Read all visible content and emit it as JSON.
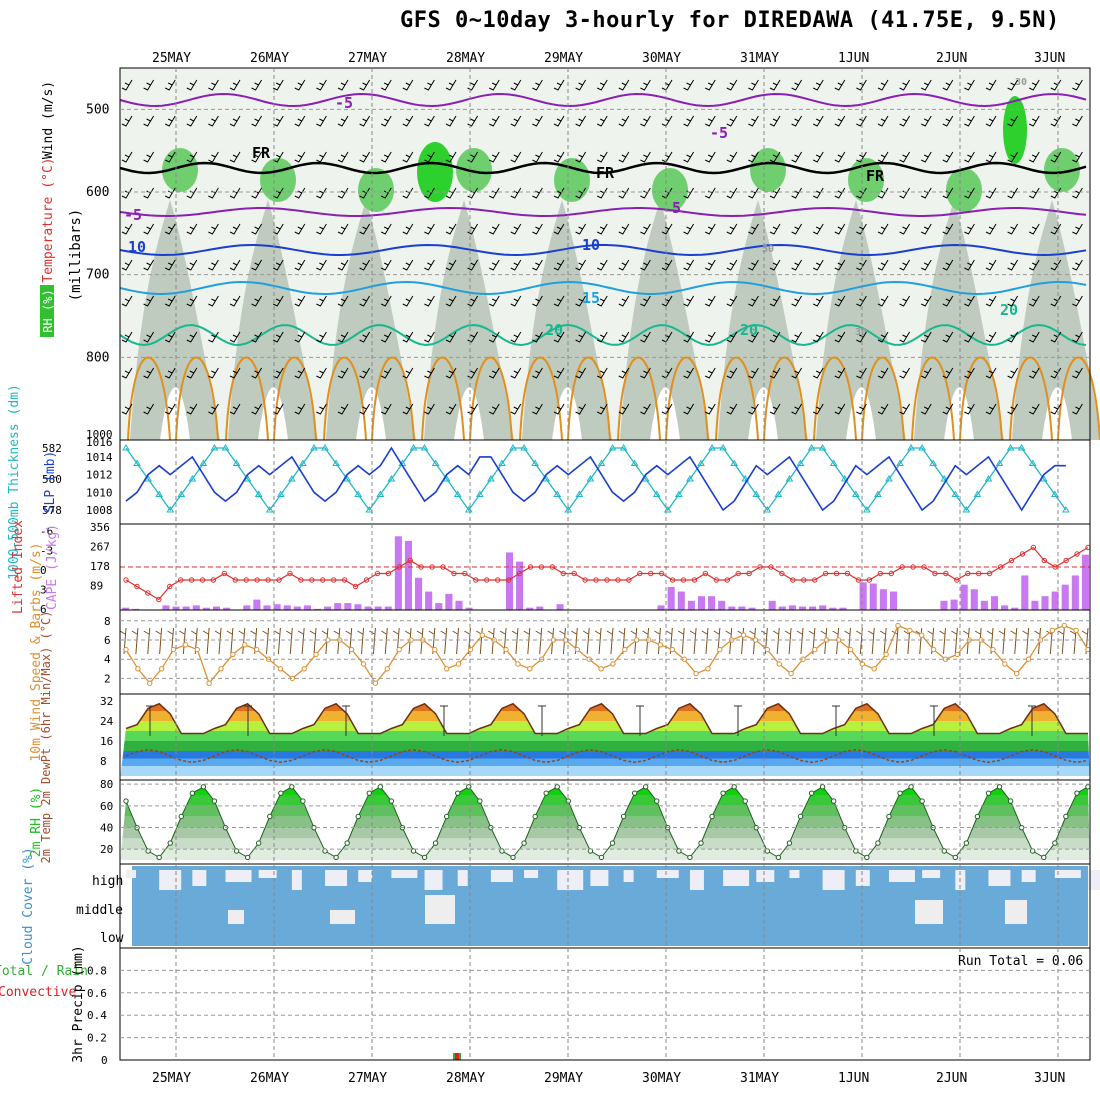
{
  "title": "GFS 0~10day 3-hourly for DIREDAWA (41.75E, 9.5N)",
  "colors": {
    "purple": "#8a1fb4",
    "black": "#000000",
    "blue_dark": "#1a3fd0",
    "blue_mid": "#1e6fd8",
    "blue_light": "#1ea0e0",
    "teal": "#17b890",
    "orange": "#e09020",
    "cyan": "#20b8c8",
    "cape": "#c878f0",
    "lifted": "#e03030",
    "wind": "#e09030",
    "rh_green": "#20c020",
    "cloud": "#6aaad8",
    "precip_green": "#30b030",
    "precip_red": "#e02020"
  },
  "chart_data": [
    {
      "type": "contour",
      "id": "upper",
      "xlabels": [
        "25MAY",
        "26MAY",
        "27MAY",
        "28MAY",
        "29MAY",
        "30MAY",
        "31MAY",
        "1JUN",
        "2JUN",
        "3JUN"
      ],
      "ylabel_parts": [
        "RH (%)",
        "Temperature (°C)",
        "Wind (m/s)",
        "(millibars)"
      ],
      "yticks": [
        500,
        600,
        700,
        800
      ],
      "ylim": [
        900,
        450
      ],
      "contour_labels": [
        {
          "text": "-5",
          "color": "purple"
        },
        {
          "text": "-5",
          "color": "purple"
        },
        {
          "text": "-5",
          "color": "purple"
        },
        {
          "text": "5",
          "color": "purple"
        },
        {
          "text": "FR",
          "color": "black"
        },
        {
          "text": "FR",
          "color": "black"
        },
        {
          "text": "FR",
          "color": "black"
        },
        {
          "text": "10",
          "color": "blue_dark"
        },
        {
          "text": "10",
          "color": "blue_dark"
        },
        {
          "text": "15",
          "color": "blue_light"
        },
        {
          "text": "20",
          "color": "teal"
        },
        {
          "text": "20",
          "color": "teal"
        },
        {
          "text": "20",
          "color": "teal"
        },
        {
          "text": "30",
          "color": "gray"
        },
        {
          "text": "30",
          "color": "gray"
        },
        {
          "text": "50",
          "color": "gray"
        }
      ]
    },
    {
      "type": "line",
      "id": "slp",
      "ylabel_left": "1000-500mb Thickness (dm)",
      "ylabel_right": "SLP (mb)",
      "yticks_left": [
        578,
        580,
        582
      ],
      "yticks_right": [
        1008,
        1010,
        1012,
        1014
      ],
      "top_labels": [
        "1016",
        "1000"
      ],
      "series": [
        {
          "name": "SLP",
          "color": "blue_dark",
          "values": [
            1009,
            1010,
            1012,
            1013,
            1012,
            1013,
            1014,
            1012,
            1010,
            1009,
            1010,
            1012,
            1013,
            1012,
            1013,
            1014,
            1012,
            1010,
            1009,
            1010,
            1012,
            1013,
            1012,
            1013,
            1015,
            1013,
            1011,
            1009,
            1010,
            1012,
            1013,
            1012,
            1014,
            1014,
            1012,
            1010,
            1009,
            1010,
            1012,
            1013,
            1012,
            1013,
            1014,
            1012,
            1010,
            1009,
            1010,
            1012,
            1013,
            1012,
            1013,
            1014,
            1012,
            1010,
            1008,
            1009,
            1011,
            1013,
            1012,
            1013,
            1014,
            1012,
            1010,
            1008,
            1009,
            1011,
            1013,
            1012,
            1013,
            1014,
            1012,
            1010,
            1008,
            1009,
            1011,
            1013,
            1012,
            1013,
            1014,
            1012,
            1010,
            1008,
            1010,
            1012,
            1013,
            1013
          ]
        },
        {
          "name": "Thickness",
          "color": "cyan",
          "values": [
            582,
            581,
            580,
            579,
            578,
            579,
            580,
            581,
            582,
            582,
            581,
            580,
            579,
            578,
            579,
            580,
            581,
            582,
            582,
            581,
            580,
            579,
            578,
            579,
            580,
            581,
            582,
            582,
            581,
            580,
            579,
            578,
            579,
            580,
            581,
            582,
            582,
            581,
            580,
            579,
            578,
            579,
            580,
            581,
            582,
            582,
            581,
            580,
            579,
            578,
            579,
            580,
            581,
            582,
            582,
            581,
            580,
            579,
            578,
            579,
            580,
            581,
            582,
            582,
            581,
            580,
            579,
            578,
            579,
            580,
            581,
            582,
            582,
            581,
            580,
            579,
            578,
            579,
            580,
            581,
            582,
            582,
            581,
            580,
            579,
            578
          ]
        }
      ]
    },
    {
      "type": "bar+line",
      "id": "cape",
      "ylabel_left": "Lifted Index",
      "ylabel_right": "CAPE (J/kg)",
      "yticks_left": [
        "-6",
        "-3",
        "0",
        "3",
        "6"
      ],
      "yticks_right": [
        "356",
        "267",
        "178",
        "89"
      ],
      "cape_values": [
        10,
        5,
        0,
        0,
        20,
        15,
        15,
        20,
        10,
        15,
        10,
        0,
        20,
        45,
        20,
        25,
        20,
        15,
        20,
        5,
        15,
        30,
        30,
        25,
        15,
        15,
        15,
        320,
        300,
        140,
        80,
        30,
        70,
        40,
        10,
        0,
        0,
        0,
        250,
        210,
        10,
        15,
        0,
        25,
        0,
        0,
        0,
        0,
        0,
        0,
        0,
        0,
        0,
        20,
        100,
        80,
        40,
        60,
        60,
        40,
        15,
        15,
        10,
        0,
        40,
        15,
        20,
        15,
        15,
        20,
        10,
        10,
        0,
        120,
        115,
        90,
        80,
        0,
        0,
        0,
        0,
        40,
        45,
        110,
        90,
        40,
        60,
        20,
        10,
        150,
        40,
        60,
        80,
        110,
        150,
        240
      ],
      "lifted_values": [
        2,
        3,
        4,
        5,
        3,
        2,
        2,
        2,
        2,
        1,
        2,
        2,
        2,
        2,
        2,
        1,
        2,
        2,
        2,
        2,
        2,
        3,
        2,
        1,
        1,
        0,
        -1,
        0,
        0,
        0,
        1,
        1,
        2,
        2,
        2,
        2,
        1,
        0,
        0,
        0,
        1,
        1,
        2,
        2,
        2,
        2,
        2,
        1,
        1,
        1,
        2,
        2,
        2,
        1,
        2,
        2,
        1,
        1,
        0,
        0,
        1,
        2,
        2,
        2,
        1,
        1,
        1,
        2,
        2,
        1,
        1,
        0,
        0,
        0,
        1,
        1,
        2,
        1,
        1,
        1,
        0,
        -1,
        -2,
        -3,
        -1,
        0,
        -1,
        -2,
        -3
      ]
    },
    {
      "type": "line",
      "id": "wind10m",
      "ylabel": "10m Wind Speed & Barbs (m/s)",
      "yticks": [
        "2",
        "4",
        "6",
        "8"
      ],
      "values": [
        5,
        3,
        1.5,
        3,
        5,
        5.5,
        5,
        1.5,
        3,
        4.5,
        5.5,
        5,
        4,
        3,
        2,
        3,
        4.5,
        6,
        6,
        5,
        3.5,
        1.5,
        3,
        5,
        6,
        6,
        5,
        3,
        3.5,
        5,
        6.5,
        6,
        5,
        3.5,
        3,
        4,
        6,
        6,
        5,
        4,
        3,
        3.5,
        5,
        6,
        6,
        5.5,
        5,
        4,
        2.5,
        3,
        5,
        6,
        6.5,
        6,
        5,
        3.5,
        2.5,
        4,
        5,
        6,
        6,
        5,
        3.5,
        3,
        4.5,
        7.5,
        7,
        6.5,
        5,
        4,
        4.5,
        6,
        6,
        5,
        3.5,
        2.5,
        4,
        6,
        7,
        7.5,
        7,
        5
      ]
    },
    {
      "type": "line",
      "id": "temp2m",
      "ylabel": "2m Temp 2m DewPt (6hr Min/Max) (°C)",
      "yticks": [
        "8",
        "16",
        "24",
        "32"
      ]
    },
    {
      "type": "area",
      "id": "rh2m",
      "ylabel": "2m RH (%)",
      "yticks": [
        "20",
        "40",
        "60",
        "80"
      ]
    },
    {
      "type": "heatmap",
      "id": "cloud",
      "ylabel": "Cloud Cover (%)",
      "levels": [
        "high",
        "middle",
        "low"
      ]
    },
    {
      "type": "bar",
      "id": "precip",
      "ylabel_left_a": "Total / Rain",
      "ylabel_left_b": "Convective",
      "ylabel": "3hr Precip (mm)",
      "yticks": [
        "0",
        "0.2",
        "0.4",
        "0.6",
        "0.8"
      ],
      "run_total": "Run Total = 0.06"
    }
  ]
}
